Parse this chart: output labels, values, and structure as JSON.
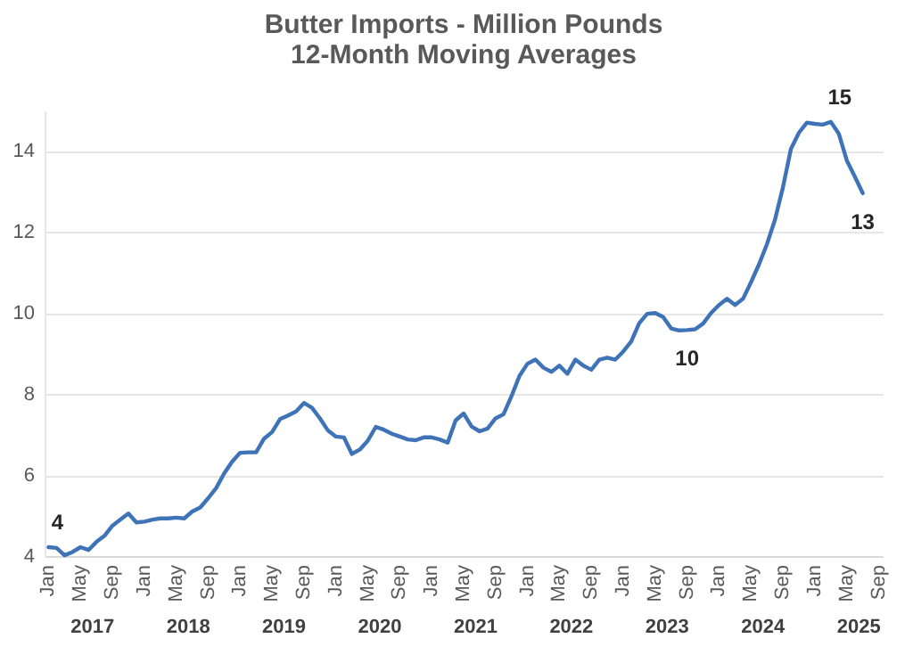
{
  "chart_data": {
    "type": "line",
    "title": "Butter Imports - Million Pounds\n12-Month Moving Averages",
    "categories": [
      "Jan",
      null,
      null,
      null,
      "May",
      null,
      null,
      null,
      "Sep",
      null,
      null,
      null,
      "Jan",
      null,
      null,
      null,
      "May",
      null,
      null,
      null,
      "Sep",
      null,
      null,
      null,
      "Jan",
      null,
      null,
      null,
      "May",
      null,
      null,
      null,
      "Sep",
      null,
      null,
      null,
      "Jan",
      null,
      null,
      null,
      "May",
      null,
      null,
      null,
      "Sep",
      null,
      null,
      null,
      "Jan",
      null,
      null,
      null,
      "May",
      null,
      null,
      null,
      "Sep",
      null,
      null,
      null,
      "Jan",
      null,
      null,
      null,
      "May",
      null,
      null,
      null,
      "Sep",
      null,
      null,
      null,
      "Jan",
      null,
      null,
      null,
      "May",
      null,
      null,
      null,
      "Sep",
      null,
      null,
      null,
      "Jan",
      null,
      null,
      null,
      "May",
      null,
      null,
      null,
      "Sep",
      null,
      null,
      null,
      "Jan",
      null,
      null,
      null,
      "May",
      null,
      null,
      null,
      "Sep"
    ],
    "series": [
      {
        "color": "#3f73b8",
        "values": [
          4.22,
          4.2,
          4.02,
          4.1,
          4.22,
          4.15,
          4.35,
          4.5,
          4.75,
          4.9,
          5.05,
          4.83,
          4.85,
          4.9,
          4.93,
          4.93,
          4.95,
          4.93,
          5.1,
          5.2,
          5.43,
          5.68,
          6.04,
          6.33,
          6.55,
          6.56,
          6.56,
          6.9,
          7.06,
          7.38,
          7.47,
          7.57,
          7.78,
          7.66,
          7.4,
          7.1,
          6.95,
          6.93,
          6.52,
          6.63,
          6.85,
          7.19,
          7.12,
          7.02,
          6.95,
          6.88,
          6.86,
          6.93,
          6.93,
          6.88,
          6.8,
          7.35,
          7.52,
          7.2,
          7.08,
          7.15,
          7.4,
          7.5,
          7.95,
          8.45,
          8.75,
          8.85,
          8.65,
          8.55,
          8.7,
          8.5,
          8.85,
          8.7,
          8.6,
          8.85,
          8.9,
          8.85,
          9.05,
          9.3,
          9.75,
          9.98,
          10.0,
          9.9,
          9.62,
          9.57,
          9.58,
          9.6,
          9.74,
          10.0,
          10.2,
          10.35,
          10.2,
          10.35,
          10.76,
          11.2,
          11.7,
          12.3,
          13.1,
          14.05,
          14.45,
          14.7,
          14.67,
          14.65,
          14.72,
          14.43,
          13.77,
          13.37,
          12.96,
          null,
          null
        ],
        "value_labels": [
          "4",
          null,
          null,
          null,
          null,
          null,
          null,
          null,
          null,
          null,
          null,
          null,
          null,
          null,
          null,
          null,
          null,
          null,
          null,
          null,
          null,
          null,
          null,
          null,
          null,
          null,
          null,
          null,
          null,
          null,
          null,
          null,
          null,
          null,
          null,
          null,
          null,
          null,
          null,
          null,
          null,
          null,
          null,
          null,
          null,
          null,
          null,
          null,
          null,
          null,
          null,
          null,
          null,
          null,
          null,
          null,
          null,
          null,
          null,
          null,
          null,
          null,
          null,
          null,
          null,
          null,
          null,
          null,
          null,
          null,
          null,
          null,
          null,
          null,
          null,
          null,
          null,
          null,
          null,
          null,
          "10",
          null,
          null,
          null,
          null,
          null,
          null,
          null,
          null,
          null,
          null,
          null,
          null,
          null,
          null,
          null,
          null,
          null,
          "15",
          null,
          null,
          null,
          "13",
          null,
          null
        ]
      }
    ],
    "annotations": [
      "2017",
      "2018",
      "2019",
      "2020",
      "2021",
      "2022",
      "2023",
      "2024",
      "2025"
    ],
    "ylim": [
      4,
      15
    ],
    "yticks": [
      4,
      6,
      8,
      10,
      12,
      14
    ],
    "grid": "y",
    "marker": "none",
    "line_style": "solid"
  }
}
